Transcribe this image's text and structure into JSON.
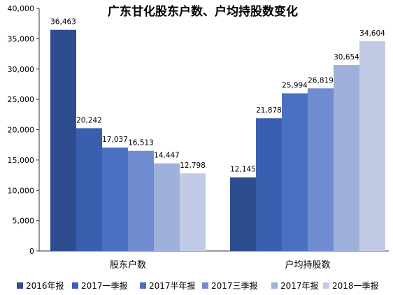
{
  "chart_data": {
    "type": "bar",
    "title": "广东甘化股东户数、户均持股数变化",
    "xlabel": "",
    "ylabel": "",
    "categories": [
      "股东户数",
      "户均持股数"
    ],
    "series": [
      {
        "name": "2016年报",
        "values": [
          36463,
          12145
        ],
        "labels": [
          "36,463",
          "12,145"
        ],
        "color": "#2e4d8e"
      },
      {
        "name": "2017一季报",
        "values": [
          20242,
          21878
        ],
        "labels": [
          "20,242",
          "21,878"
        ],
        "color": "#3a5fae"
      },
      {
        "name": "2017半年报",
        "values": [
          17037,
          25994
        ],
        "labels": [
          "17,037",
          "25,994"
        ],
        "color": "#4a70c2"
      },
      {
        "name": "2017三季报",
        "values": [
          16513,
          26819
        ],
        "labels": [
          "16,513",
          "26,819"
        ],
        "color": "#6f8dd0"
      },
      {
        "name": "2017年报",
        "values": [
          14447,
          30654
        ],
        "labels": [
          "14,447",
          "30,654"
        ],
        "color": "#9fb0da"
      },
      {
        "name": "2018一季报",
        "values": [
          12798,
          34604
        ],
        "labels": [
          "12,798",
          "34,604"
        ],
        "color": "#c2cbe6"
      }
    ],
    "ylim": [
      0,
      40000
    ],
    "yticks": [
      0,
      5000,
      10000,
      15000,
      20000,
      25000,
      30000,
      35000,
      40000
    ],
    "ytick_labels": [
      "0",
      "5,000",
      "10,000",
      "15,000",
      "20,000",
      "25,000",
      "30,000",
      "35,000",
      "40,000"
    ],
    "grid": false,
    "legend": "bottom"
  }
}
